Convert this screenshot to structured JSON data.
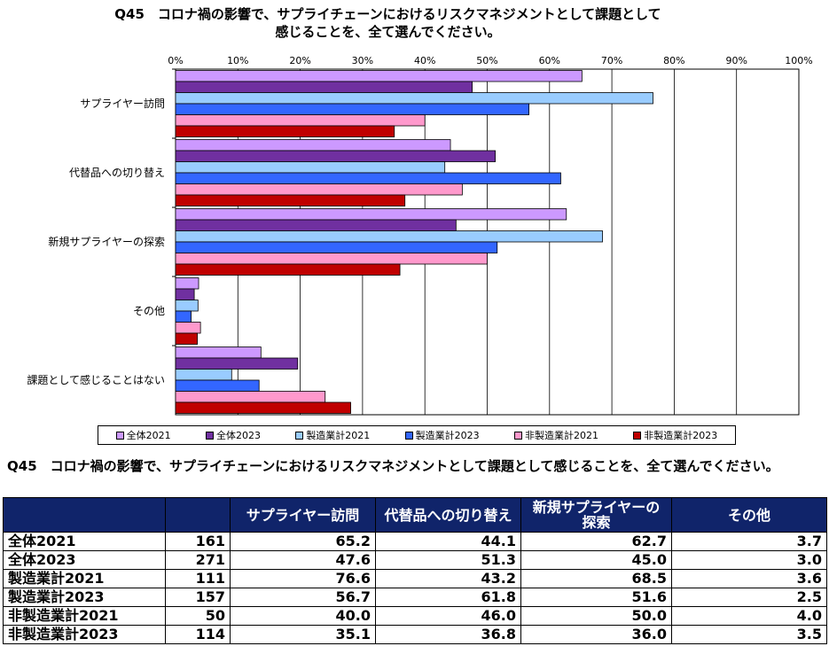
{
  "title_line1": "Q45　コロナ禍の影響で、サプライチェーンにおけるリスクマネジメントとして課題として",
  "title_line2": "感じることを、全て選んでください。",
  "chart_data": {
    "type": "bar",
    "orientation": "horizontal",
    "categories": [
      "サプライヤー訪問",
      "代替品への切り替え",
      "新規サプライヤーの探索",
      "その他",
      "課題として感じることはない"
    ],
    "series": [
      {
        "name": "全体2021",
        "color": "#cc99ff",
        "values": [
          65.2,
          44.1,
          62.7,
          3.7,
          13.7
        ]
      },
      {
        "name": "全体2023",
        "color": "#7030a0",
        "values": [
          47.6,
          51.3,
          45.0,
          3.0,
          19.6
        ]
      },
      {
        "name": "製造業計2021",
        "color": "#99ccff",
        "values": [
          76.6,
          43.2,
          68.5,
          3.6,
          9.0
        ]
      },
      {
        "name": "製造業計2023",
        "color": "#3366ff",
        "values": [
          56.7,
          61.8,
          51.6,
          2.5,
          13.4
        ]
      },
      {
        "name": "非製造業計2021",
        "color": "#ff99cc",
        "values": [
          40.0,
          46.0,
          50.0,
          4.0,
          24.0
        ]
      },
      {
        "name": "非製造業計2023",
        "color": "#c00000",
        "values": [
          35.1,
          36.8,
          36.0,
          3.5,
          28.1
        ]
      }
    ],
    "x_ticks": [
      "0%",
      "10%",
      "20%",
      "30%",
      "40%",
      "50%",
      "60%",
      "70%",
      "80%",
      "90%",
      "100%"
    ],
    "xlim": [
      0,
      100
    ],
    "grid": true,
    "legend_position": "bottom"
  },
  "table": {
    "title": "Q45　コロナ禍の影響で、サプライチェーンにおけるリスクマネジメントとして課題として感じることを、全て選んでください。",
    "headers": [
      "",
      "",
      "サプライヤー訪問",
      "代替品への切り替え",
      "新規サプライヤーの探索",
      "その他"
    ],
    "rows": [
      {
        "label": "全体2021",
        "n": "161",
        "v1": "65.2",
        "v2": "44.1",
        "v3": "62.7",
        "v4": "3.7"
      },
      {
        "label": "全体2023",
        "n": "271",
        "v1": "47.6",
        "v2": "51.3",
        "v3": "45.0",
        "v4": "3.0"
      },
      {
        "label": "製造業計2021",
        "n": "111",
        "v1": "76.6",
        "v2": "43.2",
        "v3": "68.5",
        "v4": "3.6"
      },
      {
        "label": "製造業計2023",
        "n": "157",
        "v1": "56.7",
        "v2": "61.8",
        "v3": "51.6",
        "v4": "2.5"
      },
      {
        "label": "非製造業計2021",
        "n": "50",
        "v1": "40.0",
        "v2": "46.0",
        "v3": "50.0",
        "v4": "4.0"
      },
      {
        "label": "非製造業計2023",
        "n": "114",
        "v1": "35.1",
        "v2": "36.8",
        "v3": "36.0",
        "v4": "3.5"
      }
    ]
  }
}
